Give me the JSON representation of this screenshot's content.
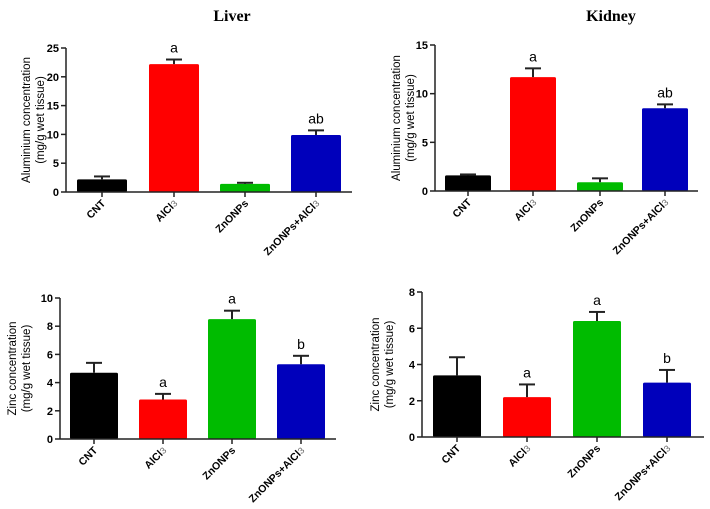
{
  "titles": {
    "liver": "Liver",
    "kidney": "Kidney"
  },
  "chart_data": [
    {
      "id": "liver-aluminium",
      "type": "bar",
      "title": "Liver",
      "ylabel_line1": "Aluminium concentration",
      "ylabel_line2": "(mg/g wet tissue)",
      "xlabel": "",
      "categories": [
        "CNT",
        "AlCl3",
        "ZnONPs",
        "ZnONPs+AlCl3"
      ],
      "category_display": [
        {
          "main": "CNT",
          "sub": ""
        },
        {
          "main": "AlCl",
          "sub": "3"
        },
        {
          "main": "ZnONPs",
          "sub": ""
        },
        {
          "main": "ZnONPs+AlCl",
          "sub": "3"
        }
      ],
      "values": [
        2.2,
        22.2,
        1.4,
        9.9
      ],
      "errors": [
        0.5,
        0.8,
        0.2,
        0.8
      ],
      "significance": [
        "",
        "a",
        "",
        "ab"
      ],
      "colors": [
        "#000000",
        "#ff0000",
        "#00bb00",
        "#0000bb"
      ],
      "ylim": [
        0,
        25
      ],
      "yticks": [
        0,
        5,
        10,
        15,
        20,
        25
      ],
      "grid": false
    },
    {
      "id": "kidney-aluminium",
      "type": "bar",
      "title": "Kidney",
      "ylabel_line1": "Aluminium concentration",
      "ylabel_line2": "(mg/g wet tissue)",
      "xlabel": "",
      "categories": [
        "CNT",
        "AlCl3",
        "ZnONPs",
        "ZnONPs+AlCl3"
      ],
      "category_display": [
        {
          "main": "CNT",
          "sub": ""
        },
        {
          "main": "AlCl",
          "sub": "3"
        },
        {
          "main": "ZnONPs",
          "sub": ""
        },
        {
          "main": "ZnONPs+AlCl",
          "sub": "3"
        }
      ],
      "values": [
        1.6,
        11.7,
        0.9,
        8.5
      ],
      "errors": [
        0.1,
        0.9,
        0.4,
        0.4
      ],
      "significance": [
        "",
        "a",
        "",
        "ab"
      ],
      "colors": [
        "#000000",
        "#ff0000",
        "#00bb00",
        "#0000bb"
      ],
      "ylim": [
        0,
        15
      ],
      "yticks": [
        0,
        5,
        10,
        15
      ],
      "grid": false
    },
    {
      "id": "liver-zinc",
      "type": "bar",
      "title": "",
      "ylabel_line1": "Zinc concentration",
      "ylabel_line2": "(mg/g wet tissue)",
      "xlabel": "",
      "categories": [
        "CNT",
        "AlCl3",
        "ZnONPs",
        "ZnONPs+AlCl3"
      ],
      "category_display": [
        {
          "main": "CNT",
          "sub": ""
        },
        {
          "main": "AlCl",
          "sub": "3"
        },
        {
          "main": "ZnONPs",
          "sub": ""
        },
        {
          "main": "ZnONPs+AlCl",
          "sub": "3"
        }
      ],
      "values": [
        4.7,
        2.8,
        8.5,
        5.3
      ],
      "errors": [
        0.7,
        0.4,
        0.6,
        0.6
      ],
      "significance": [
        "",
        "a",
        "a",
        "b"
      ],
      "colors": [
        "#000000",
        "#ff0000",
        "#00bb00",
        "#0000bb"
      ],
      "ylim": [
        0,
        10
      ],
      "yticks": [
        0,
        2,
        4,
        6,
        8,
        10
      ],
      "grid": false
    },
    {
      "id": "kidney-zinc",
      "type": "bar",
      "title": "",
      "ylabel_line1": "Zinc concentration",
      "ylabel_line2": "(mg/g wet tissue)",
      "xlabel": "",
      "categories": [
        "CNT",
        "AlCl3",
        "ZnONPs",
        "ZnONPs+AlCl3"
      ],
      "category_display": [
        {
          "main": "CNT",
          "sub": ""
        },
        {
          "main": "AlCl",
          "sub": "3"
        },
        {
          "main": "ZnONPs",
          "sub": ""
        },
        {
          "main": "ZnONPs+AlCl",
          "sub": "3"
        }
      ],
      "values": [
        3.4,
        2.2,
        6.4,
        3.0
      ],
      "errors": [
        1.0,
        0.7,
        0.5,
        0.7
      ],
      "significance": [
        "",
        "a",
        "a",
        "b"
      ],
      "colors": [
        "#000000",
        "#ff0000",
        "#00bb00",
        "#0000bb"
      ],
      "ylim": [
        0,
        8
      ],
      "yticks": [
        0,
        2,
        4,
        6,
        8
      ],
      "grid": false
    }
  ]
}
